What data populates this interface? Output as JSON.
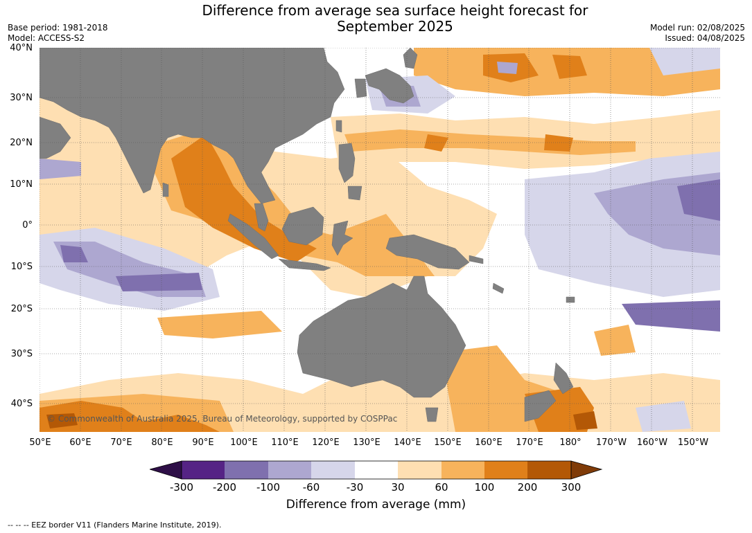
{
  "title": {
    "line1": "Difference from average sea surface height forecast for",
    "line2": "September 2025"
  },
  "meta": {
    "base_period": "Base period: 1981-2018",
    "model": "Model: ACCESS-S2",
    "model_run": "Model run: 02/08/2025",
    "issued": "Issued: 04/08/2025"
  },
  "map": {
    "lat_labels": [
      "40°N",
      "30°N",
      "20°N",
      "10°N",
      "0°",
      "10°S",
      "20°S",
      "30°S",
      "40°S"
    ],
    "lon_labels": [
      "50°E",
      "60°E",
      "70°E",
      "80°E",
      "90°E",
      "100°E",
      "110°E",
      "120°E",
      "130°E",
      "140°E",
      "150°E",
      "160°E",
      "170°E",
      "180°",
      "170°W",
      "160°W",
      "150°W"
    ],
    "copyright": "© Commonwealth of Australia 2025, Bureau of Meteorology, supported by COSPPac",
    "land_color": "#808080"
  },
  "legend": {
    "title": "Difference from average (mm)",
    "ticks": [
      "-300",
      "-200",
      "-100",
      "-60",
      "-30",
      "30",
      "60",
      "100",
      "200",
      "300"
    ],
    "colors": {
      "lt_minus300": "#2e0f47",
      "b_minus300_minus200": "#552385",
      "b_minus200_minus100": "#7f70ae",
      "b_minus100_minus60": "#ada7d0",
      "b_minus60_minus30": "#d6d6ea",
      "b_minus30_30": "#ffffff",
      "b_30_60": "#fedfb2",
      "b_60_100": "#f7b35c",
      "b_100_200": "#e0801a",
      "b_200_300": "#b35806",
      "gt_300": "#7f3b08"
    }
  },
  "footer": "--  --  -- EEZ border V11 (Flanders Marine Institute, 2019)."
}
